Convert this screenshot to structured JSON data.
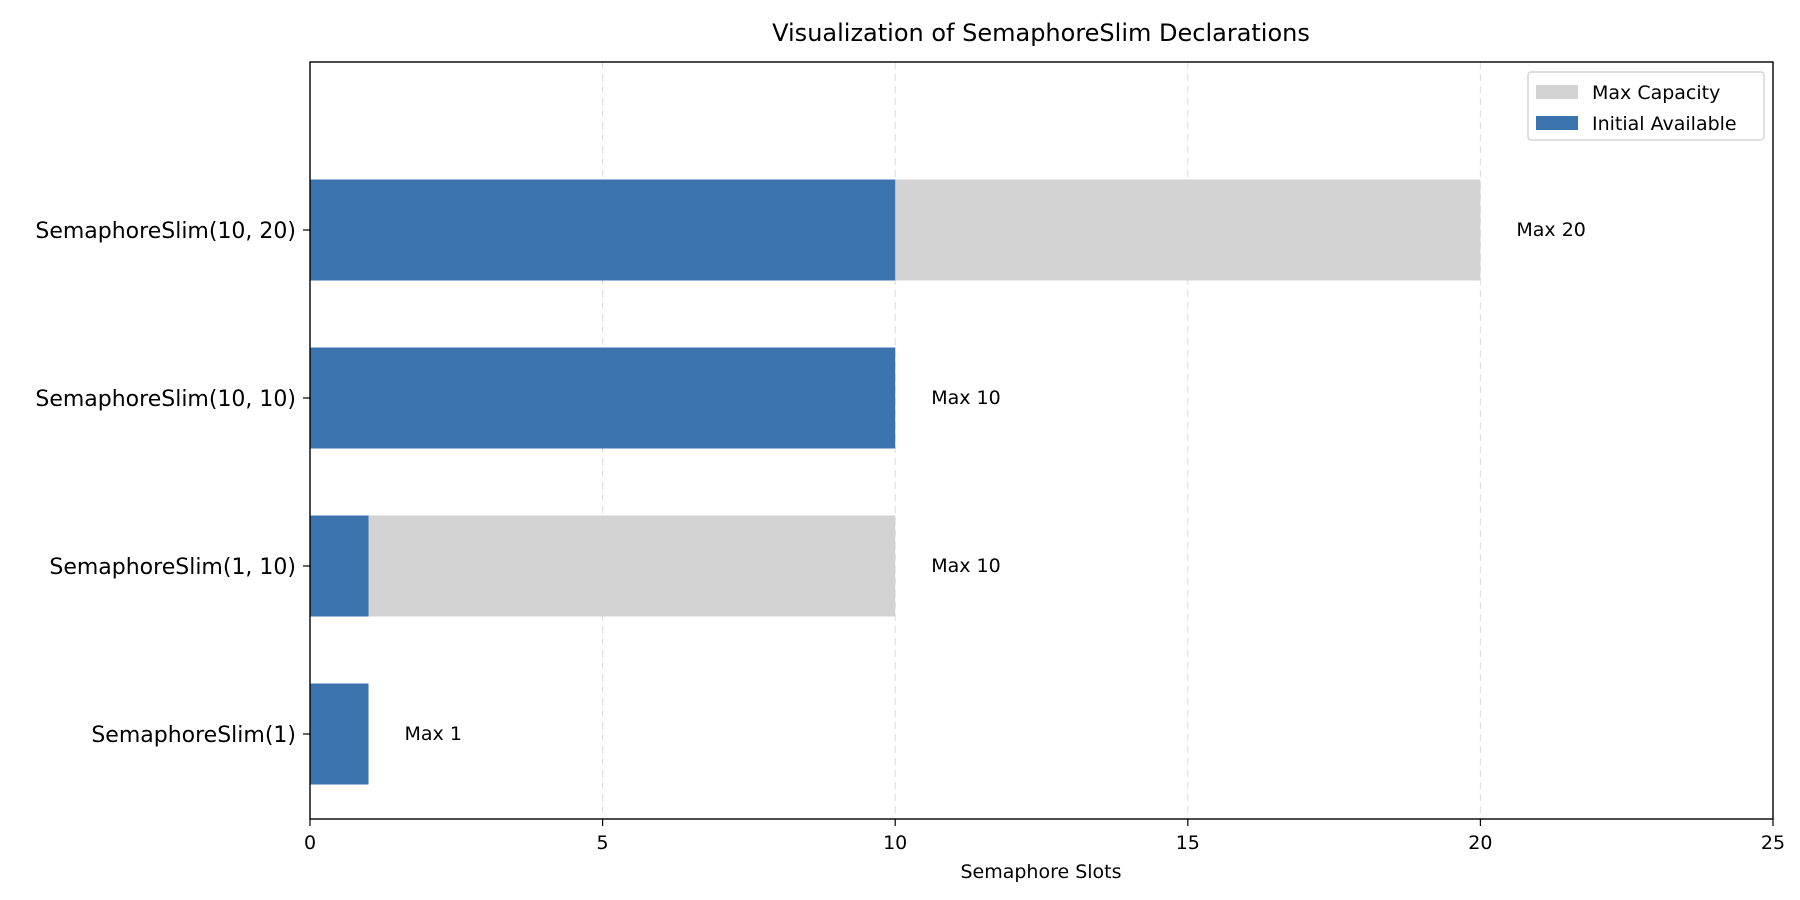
{
  "chart_data": {
    "type": "bar",
    "orientation": "horizontal",
    "stacking": "overlay",
    "title": "Visualization of SemaphoreSlim Declarations",
    "xlabel": "Semaphore Slots",
    "ylabel": "",
    "xlim": [
      0,
      25
    ],
    "xticks": [
      0,
      5,
      10,
      15,
      20,
      25
    ],
    "grid": {
      "x": true,
      "y": false,
      "style": "dashed"
    },
    "legend_position": "top-right",
    "categories": [
      "SemaphoreSlim(10, 20)",
      "SemaphoreSlim(10, 10)",
      "SemaphoreSlim(1, 10)",
      "SemaphoreSlim(1)"
    ],
    "series": [
      {
        "name": "Max Capacity",
        "color": "#d3d3d3",
        "values": [
          20,
          10,
          10,
          1
        ]
      },
      {
        "name": "Initial Available",
        "color": "#3b73ae",
        "values": [
          10,
          10,
          1,
          1
        ]
      }
    ],
    "data_labels": [
      "Max 20",
      "Max 10",
      "Max 10",
      "Max 1"
    ]
  }
}
